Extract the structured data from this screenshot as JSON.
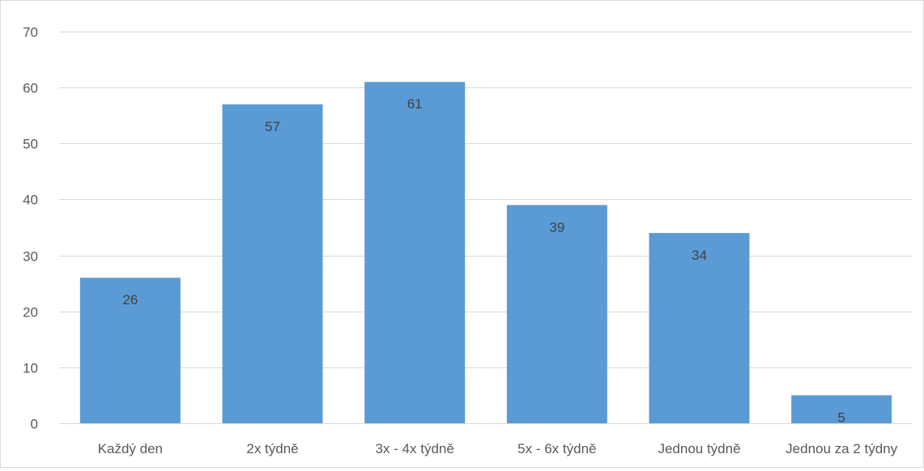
{
  "chart_data": {
    "type": "bar",
    "title": "",
    "xlabel": "",
    "ylabel": "",
    "categories": [
      "Každý den",
      "2x týdně",
      "3x - 4x týdně",
      "5x - 6x týdně",
      "Jednou týdně",
      "Jednou za 2 týdny"
    ],
    "values": [
      26,
      57,
      61,
      39,
      34,
      5
    ],
    "ylim": [
      0,
      70
    ],
    "yticks": [
      0,
      10,
      20,
      30,
      40,
      50,
      60,
      70
    ],
    "grid": true,
    "legend": false,
    "data_labels": true,
    "bar_color": "#5b9bd5"
  }
}
